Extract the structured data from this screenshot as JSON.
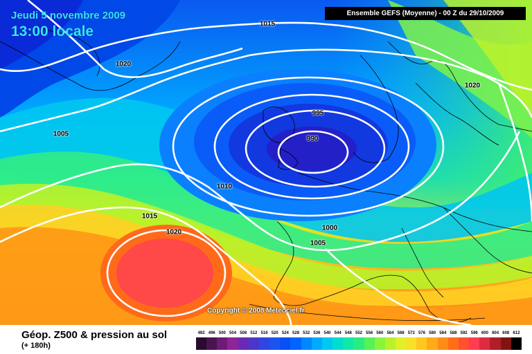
{
  "header": {
    "date": "Jeudi 5 novembre 2009",
    "time": "13:00 locale",
    "run": "Ensemble GEFS (Moyenne)  - 00 Z du 29/10/2009"
  },
  "map": {
    "isobar_labels": [
      "1015",
      "1020",
      "1005",
      "995",
      "990",
      "1010",
      "1015",
      "1020",
      "1000",
      "1005",
      "1020"
    ],
    "copyright": "Copyright © 2008 Meteociel.fr"
  },
  "footer": {
    "product": "Géop. Z500 & pression au sol",
    "lead": "(+ 180h)"
  },
  "legend": {
    "labels": [
      "492",
      "496",
      "500",
      "504",
      "508",
      "512",
      "516",
      "520",
      "524",
      "528",
      "532",
      "536",
      "540",
      "544",
      "548",
      "552",
      "556",
      "560",
      "564",
      "568",
      "572",
      "576",
      "580",
      "584",
      "588",
      "592",
      "596",
      "600",
      "604",
      "608",
      "612"
    ],
    "colors": [
      "#2a0a2e",
      "#4a1450",
      "#6d1a78",
      "#8e2496",
      "#6a28b4",
      "#4b36cc",
      "#2f46e0",
      "#1c54f0",
      "#0a4ef5",
      "#0064ff",
      "#0088ff",
      "#00aaff",
      "#00c8f0",
      "#00ddd0",
      "#10e8a8",
      "#28ee80",
      "#56f258",
      "#8af43c",
      "#b8f22a",
      "#e0f028",
      "#f8e028",
      "#ffc820",
      "#ffaa18",
      "#ff8c14",
      "#ff6e14",
      "#ff5030",
      "#ff3c50",
      "#e02a40",
      "#b01e28",
      "#801414",
      "#000000"
    ]
  },
  "colors": {
    "title": "#35e6ff",
    "isobar": "#ffffff",
    "coast": "#000000"
  }
}
